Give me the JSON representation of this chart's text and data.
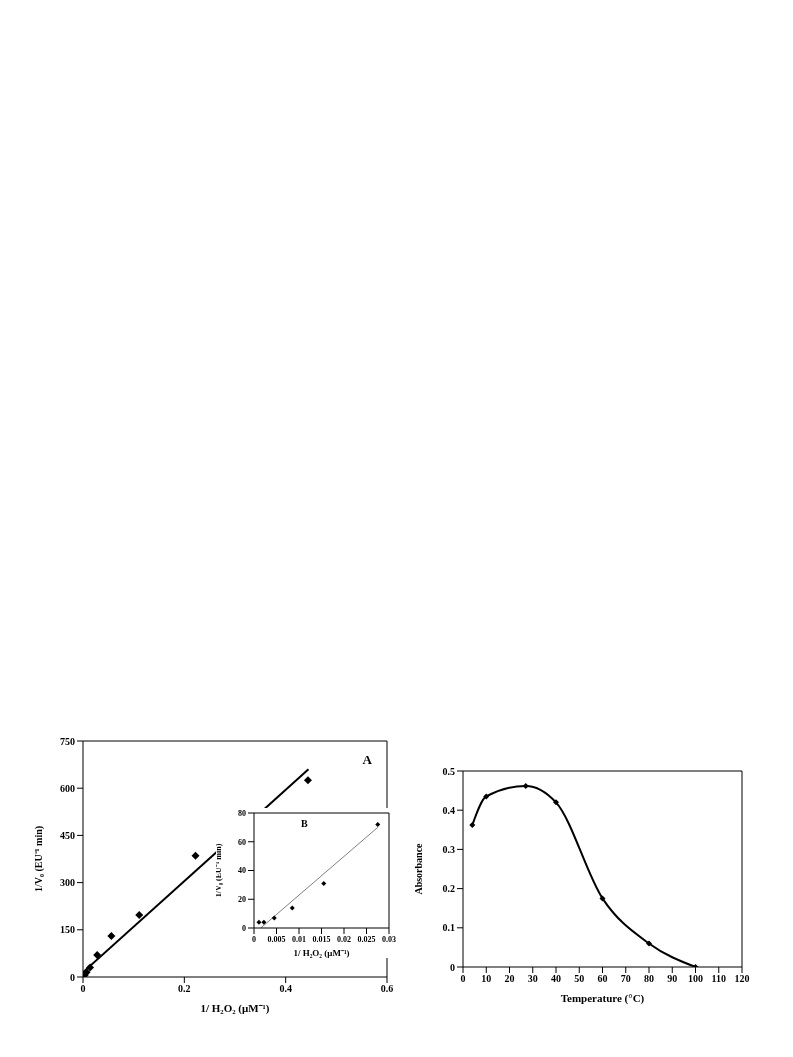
{
  "chart_data": [
    {
      "type": "scatter",
      "xlabel": "1/ H₂O₂ (μM⁻¹)",
      "ylabel": "1/V₀ (EU⁻¹ min)",
      "annotations": [
        "A"
      ],
      "xlim": [
        0,
        0.6
      ],
      "xticks": [
        0,
        0.2,
        0.4,
        0.6
      ],
      "ylim": [
        0,
        750
      ],
      "yticks": [
        0,
        150,
        300,
        450,
        600,
        750
      ],
      "grid": false,
      "legend": false,
      "marker": "diamond",
      "series": [
        {
          "color": "#000000",
          "x": [
            0.0035,
            0.007,
            0.014,
            0.028,
            0.056,
            0.111,
            0.222,
            0.444
          ],
          "values": [
            6,
            15,
            30,
            70,
            130,
            197,
            385,
            625
          ]
        },
        {
          "type": "line",
          "color": "#000000",
          "marker": "none",
          "x": [
            0,
            0.445
          ],
          "values": [
            15,
            660
          ]
        }
      ]
    },
    {
      "type": "scatter",
      "xlabel": "1/ H₂O₂ (μM⁻¹)",
      "ylabel": "1/V₀ (EU⁻¹ min)",
      "annotations": [
        "B"
      ],
      "xlim": [
        0,
        0.03
      ],
      "xticks": [
        0,
        0.005,
        0.01,
        0.015,
        0.02,
        0.025,
        0.03
      ],
      "ylim": [
        0,
        80
      ],
      "yticks": [
        0,
        20,
        40,
        60,
        80
      ],
      "grid": false,
      "legend": false,
      "marker": "diamond",
      "series": [
        {
          "color": "#000000",
          "x": [
            0.0011,
            0.0022,
            0.0045,
            0.0085,
            0.0155,
            0.0275
          ],
          "values": [
            4,
            4,
            7,
            14,
            31,
            72
          ]
        },
        {
          "type": "line",
          "color": "#808080",
          "marker": "none",
          "x": [
            0.0015,
            0.0275
          ],
          "values": [
            0,
            70
          ]
        }
      ]
    },
    {
      "type": "line",
      "xlabel": "Temperature (°C)",
      "ylabel": "Absorbance",
      "xlim": [
        0,
        120
      ],
      "xticks": [
        0,
        10,
        20,
        30,
        40,
        50,
        60,
        70,
        80,
        90,
        100,
        110,
        120
      ],
      "ylim": [
        0,
        0.5
      ],
      "yticks": [
        0,
        0.1,
        0.2,
        0.3,
        0.4,
        0.5
      ],
      "grid": false,
      "legend": false,
      "marker": "diamond",
      "line_style": "solid",
      "series": [
        {
          "color": "#000000",
          "x": [
            4,
            10,
            27,
            40,
            60,
            80,
            100
          ],
          "values": [
            0.362,
            0.435,
            0.462,
            0.42,
            0.175,
            0.06,
            0
          ]
        }
      ]
    }
  ]
}
